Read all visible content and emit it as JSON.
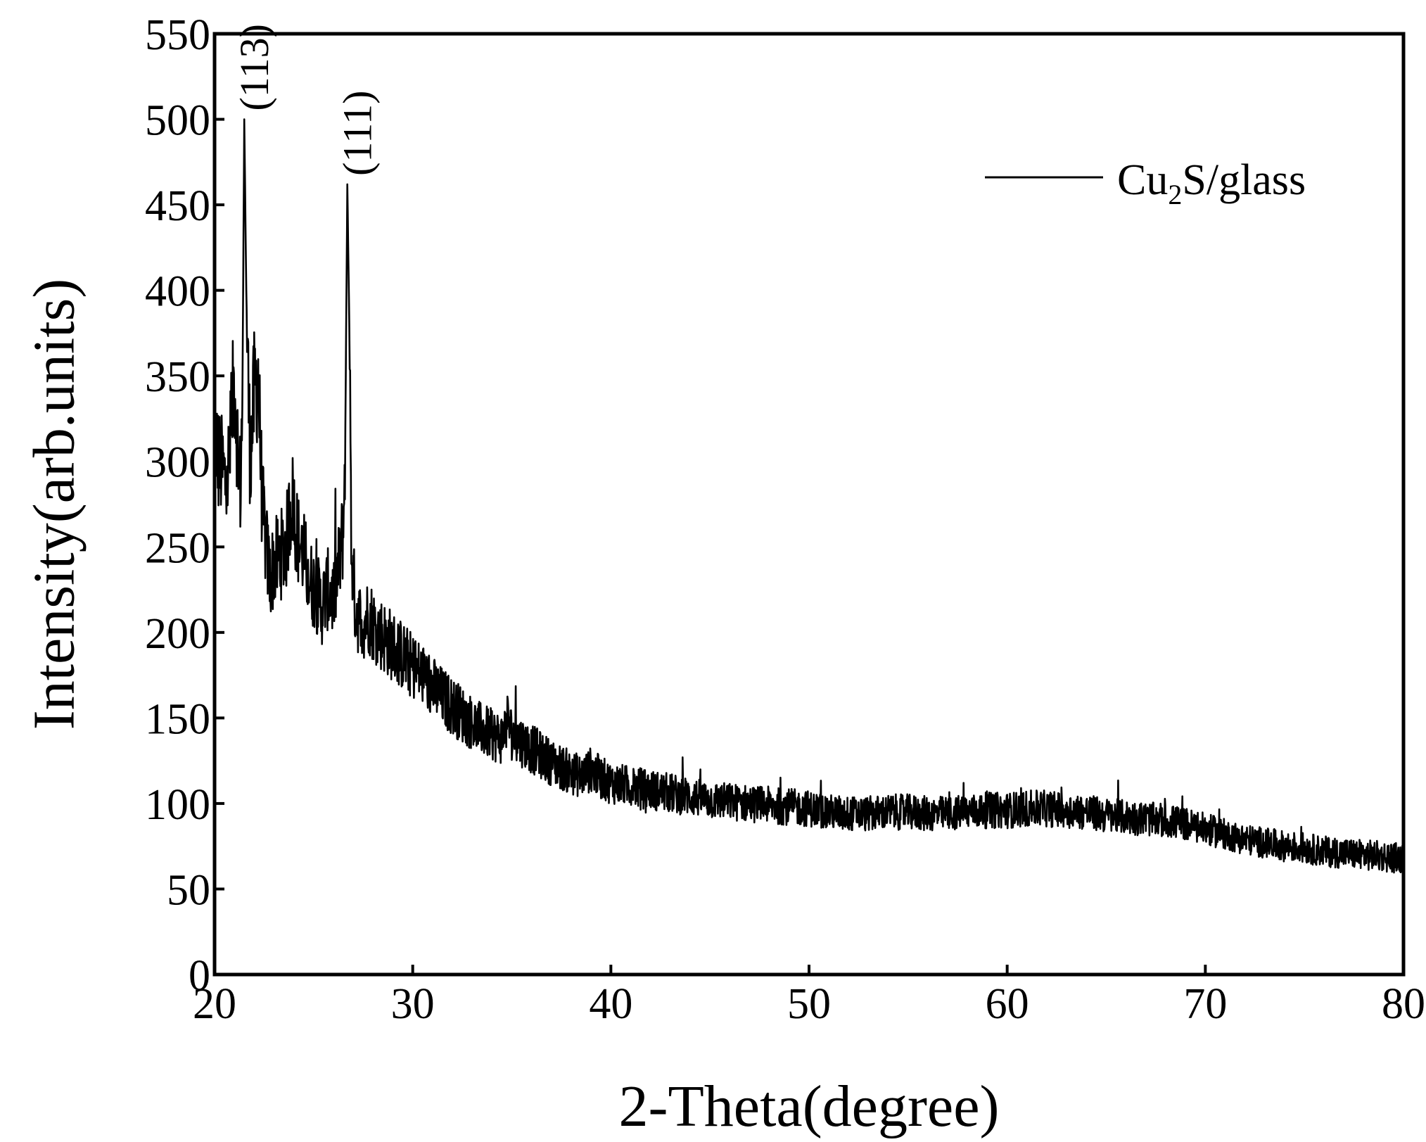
{
  "chart_data": {
    "type": "line",
    "title": "",
    "xlabel": "2-Theta(degree)",
    "ylabel": "Intensity(arb.units)",
    "xlim": [
      20,
      80
    ],
    "ylim": [
      0,
      550
    ],
    "x_ticks": [
      "20",
      "30",
      "40",
      "50",
      "60",
      "70",
      "80"
    ],
    "y_ticks": [
      "0",
      "50",
      "100",
      "150",
      "200",
      "250",
      "300",
      "350",
      "400",
      "450",
      "500",
      "550"
    ],
    "grid": false,
    "legend": {
      "placement": "top-right",
      "text_main": "Cu",
      "text_sub": "2",
      "text_rest": "S/glass"
    },
    "annotations": [
      {
        "label": "(113)",
        "x": 21.5,
        "y": 500
      },
      {
        "label": "(111)",
        "x": 26.7,
        "y": 462
      }
    ],
    "series": [
      {
        "color": "#000000",
        "points": [
          [
            20.0,
            320
          ],
          [
            20.2,
            300
          ],
          [
            20.4,
            295
          ],
          [
            20.6,
            285
          ],
          [
            20.8,
            310
          ],
          [
            21.0,
            350
          ],
          [
            21.2,
            300
          ],
          [
            21.3,
            285
          ],
          [
            21.4,
            330
          ],
          [
            21.5,
            500
          ],
          [
            21.6,
            400
          ],
          [
            21.7,
            345
          ],
          [
            21.8,
            300
          ],
          [
            22.0,
            340
          ],
          [
            22.2,
            350
          ],
          [
            22.4,
            275
          ],
          [
            22.6,
            250
          ],
          [
            22.8,
            232
          ],
          [
            23.0,
            240
          ],
          [
            23.3,
            245
          ],
          [
            23.6,
            250
          ],
          [
            23.9,
            280
          ],
          [
            24.2,
            255
          ],
          [
            24.5,
            245
          ],
          [
            24.8,
            230
          ],
          [
            25.1,
            225
          ],
          [
            25.4,
            215
          ],
          [
            25.7,
            225
          ],
          [
            26.0,
            220
          ],
          [
            26.3,
            240
          ],
          [
            26.5,
            260
          ],
          [
            26.6,
            320
          ],
          [
            26.7,
            462
          ],
          [
            26.8,
            380
          ],
          [
            26.9,
            250
          ],
          [
            27.1,
            215
          ],
          [
            27.4,
            205
          ],
          [
            27.8,
            210
          ],
          [
            28.0,
            205
          ],
          [
            28.5,
            198
          ],
          [
            29.0,
            192
          ],
          [
            29.5,
            186
          ],
          [
            30.0,
            180
          ],
          [
            30.5,
            175
          ],
          [
            31.0,
            168
          ],
          [
            31.5,
            162
          ],
          [
            32.0,
            157
          ],
          [
            32.5,
            152
          ],
          [
            33.0,
            147
          ],
          [
            33.5,
            143
          ],
          [
            34.0,
            140
          ],
          [
            34.5,
            138
          ],
          [
            34.8,
            150
          ],
          [
            35.0,
            140
          ],
          [
            35.5,
            136
          ],
          [
            36.0,
            132
          ],
          [
            36.5,
            128
          ],
          [
            37.0,
            124
          ],
          [
            37.5,
            121
          ],
          [
            38.0,
            118
          ],
          [
            38.5,
            116
          ],
          [
            39.0,
            120
          ],
          [
            39.5,
            115
          ],
          [
            40.0,
            112
          ],
          [
            41.0,
            110
          ],
          [
            42.0,
            108
          ],
          [
            43.0,
            106
          ],
          [
            44.0,
            104
          ],
          [
            45.0,
            102
          ],
          [
            46.0,
            101
          ],
          [
            47.0,
            100
          ],
          [
            48.0,
            99
          ],
          [
            49.0,
            98
          ],
          [
            50.0,
            97
          ],
          [
            51.0,
            95
          ],
          [
            52.0,
            94
          ],
          [
            53.0,
            94
          ],
          [
            54.0,
            95
          ],
          [
            55.0,
            95
          ],
          [
            56.0,
            94
          ],
          [
            57.0,
            94
          ],
          [
            58.0,
            95
          ],
          [
            59.0,
            96
          ],
          [
            60.0,
            96
          ],
          [
            61.0,
            97
          ],
          [
            62.0,
            97
          ],
          [
            63.0,
            96
          ],
          [
            64.0,
            95
          ],
          [
            65.0,
            93
          ],
          [
            66.0,
            92
          ],
          [
            67.0,
            91
          ],
          [
            68.0,
            90
          ],
          [
            69.0,
            88
          ],
          [
            70.0,
            85
          ],
          [
            71.0,
            82
          ],
          [
            72.0,
            79
          ],
          [
            73.0,
            77
          ],
          [
            74.0,
            75
          ],
          [
            75.0,
            74
          ],
          [
            76.0,
            72
          ],
          [
            77.0,
            71
          ],
          [
            78.0,
            70
          ],
          [
            79.0,
            69
          ],
          [
            80.0,
            68
          ]
        ]
      }
    ]
  }
}
